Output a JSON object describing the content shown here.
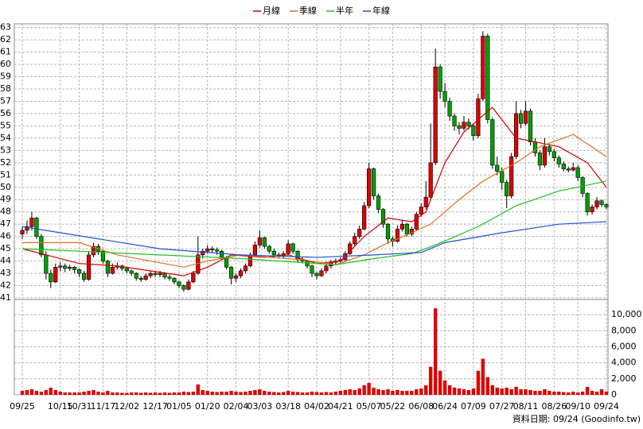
{
  "chart_data": {
    "type": "candlestick",
    "footer": "資料日期: 09/24 (Goodinfo.tw)",
    "up_color": "#e00000",
    "down_color": "#00a000",
    "ylim": [
      41,
      63.3
    ],
    "yticks": [
      41,
      42,
      43,
      44,
      45,
      46,
      47,
      48,
      49,
      50,
      51,
      52,
      53,
      54,
      55,
      56,
      57,
      58,
      59,
      60,
      61,
      62,
      63
    ],
    "grid": true,
    "categories": [
      "09/25",
      null,
      null,
      null,
      null,
      null,
      null,
      null,
      "10/15",
      null,
      null,
      null,
      "10/31",
      null,
      null,
      null,
      null,
      "11/17",
      null,
      null,
      null,
      null,
      "12/02",
      null,
      null,
      null,
      null,
      null,
      "12/17",
      null,
      null,
      null,
      null,
      "01/05",
      null,
      null,
      null,
      null,
      null,
      "01/20",
      null,
      null,
      null,
      null,
      null,
      "02/04",
      null,
      null,
      null,
      null,
      "03/03",
      null,
      null,
      null,
      null,
      null,
      "03/18",
      null,
      null,
      null,
      null,
      null,
      "04/02",
      null,
      null,
      null,
      null,
      "04/21",
      null,
      null,
      null,
      null,
      null,
      "05/07",
      null,
      null,
      null,
      null,
      "05/22",
      null,
      null,
      null,
      null,
      null,
      "06/08",
      null,
      null,
      null,
      null,
      "06/24",
      null,
      null,
      null,
      null,
      null,
      "07/09",
      null,
      null,
      null,
      null,
      null,
      "07/27",
      null,
      null,
      null,
      null,
      "08/11",
      null,
      null,
      null,
      null,
      null,
      "08/26",
      null,
      null,
      null,
      null,
      "09/10",
      null,
      null,
      null,
      null,
      null,
      "09/24"
    ],
    "ohlc": [
      [
        46.2,
        46.8,
        45.8,
        46.5
      ],
      [
        46.5,
        47.3,
        46.2,
        46.8
      ],
      [
        46.8,
        48,
        46.5,
        47.5
      ],
      [
        47.5,
        47.6,
        45.8,
        46
      ],
      [
        46,
        46.2,
        44.3,
        44.5
      ],
      [
        44.5,
        44.8,
        42.5,
        43
      ],
      [
        43,
        43.3,
        41.8,
        42.3
      ],
      [
        42.3,
        43.8,
        42.2,
        43.5
      ],
      [
        43.5,
        43.9,
        43.2,
        43.6
      ],
      [
        43.6,
        43.8,
        43.1,
        43.4
      ],
      [
        43.4,
        43.7,
        43.2,
        43.5
      ],
      [
        43.5,
        43.6,
        43,
        43.3
      ],
      [
        43.3,
        43.4,
        42.7,
        43
      ],
      [
        43,
        43.2,
        42.3,
        42.5
      ],
      [
        42.5,
        44.8,
        42.4,
        44.5
      ],
      [
        44.5,
        45.5,
        44.3,
        45.2
      ],
      [
        45.2,
        45.4,
        44.5,
        44.8
      ],
      [
        44.8,
        44.9,
        43.8,
        44
      ],
      [
        44,
        44.1,
        42.7,
        43
      ],
      [
        43,
        43.8,
        42.9,
        43.5
      ],
      [
        43.5,
        43.9,
        43.3,
        43.6
      ],
      [
        43.6,
        43.7,
        43.2,
        43.4
      ],
      [
        43.4,
        43.5,
        43,
        43.2
      ],
      [
        43.2,
        43.3,
        42.8,
        43
      ],
      [
        43,
        43.1,
        42.4,
        42.6
      ],
      [
        42.6,
        42.8,
        42.3,
        42.5
      ],
      [
        42.5,
        43,
        42.4,
        42.8
      ],
      [
        42.8,
        43.2,
        42.6,
        43
      ],
      [
        43,
        43.2,
        42.7,
        42.9
      ],
      [
        42.9,
        43.2,
        42.7,
        43
      ],
      [
        43,
        43.1,
        42.5,
        42.7
      ],
      [
        42.7,
        42.9,
        42.4,
        42.6
      ],
      [
        42.6,
        42.7,
        42.1,
        42.3
      ],
      [
        42.3,
        42.4,
        41.8,
        42
      ],
      [
        42,
        42.1,
        41.5,
        41.7
      ],
      [
        41.7,
        42.5,
        41.6,
        42.3
      ],
      [
        42.3,
        43.2,
        42.2,
        43
      ],
      [
        43,
        46,
        42.9,
        44.5
      ],
      [
        44.5,
        45,
        44.2,
        44.8
      ],
      [
        44.8,
        45.3,
        44.6,
        45
      ],
      [
        45,
        45.2,
        44.7,
        44.9
      ],
      [
        44.9,
        45.1,
        44.5,
        44.8
      ],
      [
        44.8,
        44.9,
        44.1,
        44.3
      ],
      [
        44.3,
        44.4,
        43.3,
        43.5
      ],
      [
        43.5,
        43.6,
        42.1,
        42.6
      ],
      [
        42.6,
        43,
        42.3,
        42.8
      ],
      [
        42.8,
        43.4,
        42.6,
        43.2
      ],
      [
        43.2,
        43.8,
        43,
        43.6
      ],
      [
        43.6,
        44.7,
        43.5,
        44.5
      ],
      [
        44.5,
        45.6,
        44.4,
        45.3
      ],
      [
        45.3,
        46.5,
        45.1,
        45.9
      ],
      [
        45.9,
        46,
        45,
        45.2
      ],
      [
        45.2,
        45.3,
        44.6,
        44.8
      ],
      [
        44.8,
        45,
        44.3,
        44.5
      ],
      [
        44.5,
        44.7,
        44.2,
        44.4
      ],
      [
        44.4,
        44.8,
        44.2,
        44.6
      ],
      [
        44.6,
        45.7,
        44.5,
        45.4
      ],
      [
        45.4,
        45.5,
        44.6,
        44.8
      ],
      [
        44.8,
        44.9,
        43.9,
        44.1
      ],
      [
        44.1,
        44.3,
        43.8,
        44
      ],
      [
        44,
        44.1,
        43.4,
        43.6
      ],
      [
        43.6,
        43.7,
        42.7,
        43
      ],
      [
        43,
        43.1,
        42.5,
        42.8
      ],
      [
        42.8,
        43.4,
        42.7,
        43.2
      ],
      [
        43.2,
        43.8,
        43,
        43.6
      ],
      [
        43.6,
        44.1,
        43.4,
        43.9
      ],
      [
        43.9,
        44.2,
        43.7,
        44
      ],
      [
        44,
        44.3,
        43.8,
        44.1
      ],
      [
        44.1,
        44.8,
        44,
        44.6
      ],
      [
        44.6,
        45.6,
        44.5,
        45.4
      ],
      [
        45.4,
        46.3,
        45.2,
        46
      ],
      [
        46,
        46.9,
        45.8,
        46.6
      ],
      [
        46.6,
        48.8,
        46.5,
        48.5
      ],
      [
        48.5,
        52,
        48.3,
        51.5
      ],
      [
        51.5,
        51.6,
        49,
        49.3
      ],
      [
        49.3,
        49.5,
        47.9,
        48.2
      ],
      [
        48.2,
        48.3,
        46.7,
        47
      ],
      [
        47,
        47.1,
        45.4,
        45.8
      ],
      [
        45.8,
        46,
        45.2,
        45.6
      ],
      [
        45.6,
        46.9,
        45.5,
        46.6
      ],
      [
        46.6,
        47.3,
        46.4,
        47
      ],
      [
        47,
        47.1,
        46,
        46.2
      ],
      [
        46.2,
        46.8,
        46,
        46.6
      ],
      [
        46.6,
        48,
        46.5,
        47.8
      ],
      [
        47.8,
        48.7,
        47.6,
        48.4
      ],
      [
        48.4,
        50.5,
        48.2,
        49.2
      ],
      [
        49.2,
        55.2,
        49,
        52
      ],
      [
        52,
        61.3,
        51.8,
        59.8
      ],
      [
        59.8,
        60,
        57.2,
        57.8
      ],
      [
        57.8,
        58.5,
        56.5,
        57
      ],
      [
        57,
        57.3,
        55.4,
        55.8
      ],
      [
        55.8,
        56,
        54.6,
        55
      ],
      [
        55,
        55.3,
        54.3,
        54.8
      ],
      [
        54.8,
        55.8,
        54.6,
        55.3
      ],
      [
        55.3,
        55.6,
        54.7,
        55
      ],
      [
        55,
        55.2,
        53.8,
        54.2
      ],
      [
        54.2,
        57.6,
        54,
        57.2
      ],
      [
        57.2,
        62.7,
        57,
        62.3
      ],
      [
        62.3,
        62.5,
        55.2,
        55.5
      ],
      [
        55.5,
        55.7,
        51.5,
        51.8
      ],
      [
        51.8,
        52.5,
        51,
        51.3
      ],
      [
        51.3,
        51.6,
        49.8,
        50.4
      ],
      [
        50.4,
        50.6,
        48.3,
        49.3
      ],
      [
        49.3,
        52.8,
        49.1,
        52.5
      ],
      [
        52.5,
        57,
        52.3,
        56
      ],
      [
        56,
        56.3,
        54.8,
        55.2
      ],
      [
        55.2,
        57,
        55,
        56.2
      ],
      [
        56.2,
        56.4,
        53.4,
        53.7
      ],
      [
        53.7,
        54,
        52.5,
        52.8
      ],
      [
        52.8,
        53,
        51.4,
        51.8
      ],
      [
        51.8,
        54,
        51.6,
        53.3
      ],
      [
        53.3,
        53.5,
        52.6,
        52.9
      ],
      [
        52.9,
        53.1,
        52.1,
        52.4
      ],
      [
        52.4,
        52.6,
        51.6,
        51.9
      ],
      [
        51.9,
        52.1,
        51.3,
        51.5
      ],
      [
        51.5,
        51.7,
        51.2,
        51.4
      ],
      [
        51.4,
        52,
        51.3,
        51.6
      ],
      [
        51.6,
        51.8,
        50.5,
        50.8
      ],
      [
        50.8,
        50.9,
        49.2,
        49.5
      ],
      [
        49.5,
        49.6,
        47.7,
        48
      ],
      [
        48,
        48.6,
        47.8,
        48.4
      ],
      [
        48.4,
        49.2,
        48.2,
        48.9
      ],
      [
        48.9,
        49,
        48.4,
        48.6
      ],
      [
        48.6,
        48.7,
        48.2,
        48.4
      ]
    ],
    "series": [
      {
        "name": "月線",
        "color": "#d00000",
        "x": [
          0,
          5,
          12,
          20,
          34,
          39,
          44,
          51,
          56,
          62,
          67,
          72,
          77,
          82,
          85,
          89,
          93,
          99,
          104,
          113,
          119,
          123
        ],
        "values": [
          45,
          44.5,
          43.8,
          43.6,
          42.8,
          43.5,
          44.5,
          44.3,
          44.5,
          43.8,
          44,
          46,
          47.5,
          47.2,
          48,
          52,
          54.5,
          56.5,
          54,
          53.3,
          52,
          50
        ]
      },
      {
        "name": "季線",
        "color": "#e07020",
        "x": [
          0,
          12,
          20,
          34,
          39,
          46,
          59,
          66,
          72,
          76,
          82,
          86,
          92,
          97,
          104,
          109,
          116,
          123
        ],
        "values": [
          45.5,
          45.5,
          44.5,
          43.5,
          44,
          44.5,
          44.1,
          43.7,
          44.5,
          45.3,
          46.3,
          47,
          49,
          50.5,
          52,
          53.3,
          54.3,
          52.5
        ]
      },
      {
        "name": "半年",
        "color": "#20c020",
        "x": [
          0,
          12,
          29,
          46,
          66,
          74,
          82,
          87,
          96,
          104,
          113,
          123
        ],
        "values": [
          45,
          44.8,
          44.5,
          44.2,
          43.7,
          44.2,
          44.6,
          45.3,
          46.8,
          48.5,
          49.7,
          50.5
        ]
      },
      {
        "name": "年線",
        "color": "#2050d0",
        "x": [
          0,
          29,
          46,
          62,
          74,
          84,
          89,
          101,
          113,
          123
        ],
        "values": [
          46.8,
          45,
          44.5,
          44.3,
          44.5,
          44.7,
          45.5,
          46.3,
          47,
          47.2
        ]
      }
    ],
    "volume": {
      "color": "#e00000",
      "ylim": [
        0,
        11600
      ],
      "yticks": [
        0,
        {
          "value": 2000,
          "label": "2,000"
        },
        {
          "value": 4000,
          "label": "4,000"
        },
        {
          "value": 6000,
          "label": "6,000"
        },
        {
          "value": 8000,
          "label": "8,000"
        },
        {
          "value": 10000,
          "label": "10,000"
        }
      ],
      "values": [
        500,
        600,
        700,
        500,
        400,
        600,
        900,
        600,
        400,
        300,
        300,
        300,
        300,
        400,
        500,
        600,
        400,
        300,
        500,
        300,
        300,
        250,
        250,
        300,
        300,
        250,
        300,
        250,
        300,
        250,
        300,
        250,
        300,
        300,
        400,
        350,
        400,
        1300,
        600,
        500,
        400,
        350,
        400,
        400,
        500,
        400,
        350,
        400,
        500,
        600,
        700,
        500,
        400,
        350,
        300,
        350,
        500,
        400,
        350,
        300,
        300,
        400,
        350,
        300,
        350,
        300,
        400,
        500,
        600,
        700,
        600,
        800,
        1200,
        1500,
        900,
        700,
        600,
        700,
        500,
        600,
        500,
        500,
        500,
        700,
        800,
        1200,
        3500,
        10800,
        3000,
        1800,
        1200,
        900,
        800,
        700,
        600,
        800,
        3000,
        4500,
        2200,
        1200,
        900,
        800,
        900,
        700,
        1000,
        700,
        700,
        600,
        500,
        500,
        700,
        500,
        400,
        400,
        350,
        300,
        400,
        300,
        400,
        1000,
        500,
        400,
        700,
        400
      ]
    }
  }
}
